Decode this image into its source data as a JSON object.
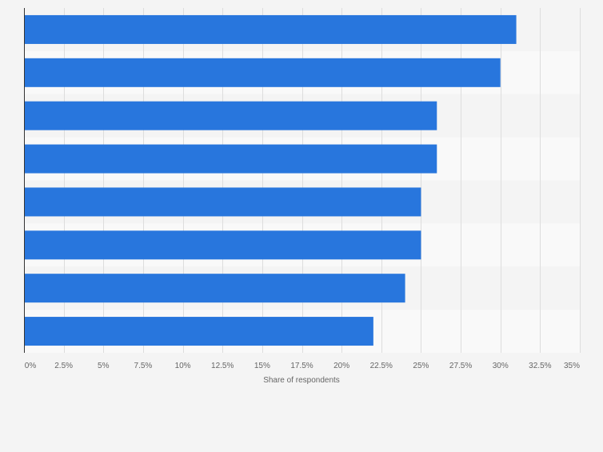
{
  "chart_data": {
    "type": "bar",
    "orientation": "horizontal",
    "title": "",
    "categories": [
      "",
      "",
      "",
      "",
      "",
      "",
      "",
      ""
    ],
    "values": [
      31,
      30,
      26,
      26,
      25,
      25,
      24,
      22
    ],
    "xlabel": "Share of respondents",
    "ylabel": "",
    "xlim": [
      0,
      35
    ],
    "x_ticks": [
      0,
      2.5,
      5,
      7.5,
      10,
      12.5,
      15,
      17.5,
      20,
      22.5,
      25,
      27.5,
      30,
      32.5,
      35
    ],
    "x_tick_labels": [
      "0%",
      "2.5%",
      "5%",
      "7.5%",
      "10%",
      "12.5%",
      "15%",
      "17.5%",
      "20%",
      "22.5%",
      "25%",
      "27.5%",
      "30%",
      "32.5%",
      "35%"
    ],
    "grid": true,
    "legend": "none",
    "colors": {
      "bar": "#2876dd",
      "band_light": "#f9f9f9",
      "band_dark": "#f4f4f4",
      "grid": "#dddddd",
      "axis": "#333333",
      "text": "#666666"
    }
  }
}
